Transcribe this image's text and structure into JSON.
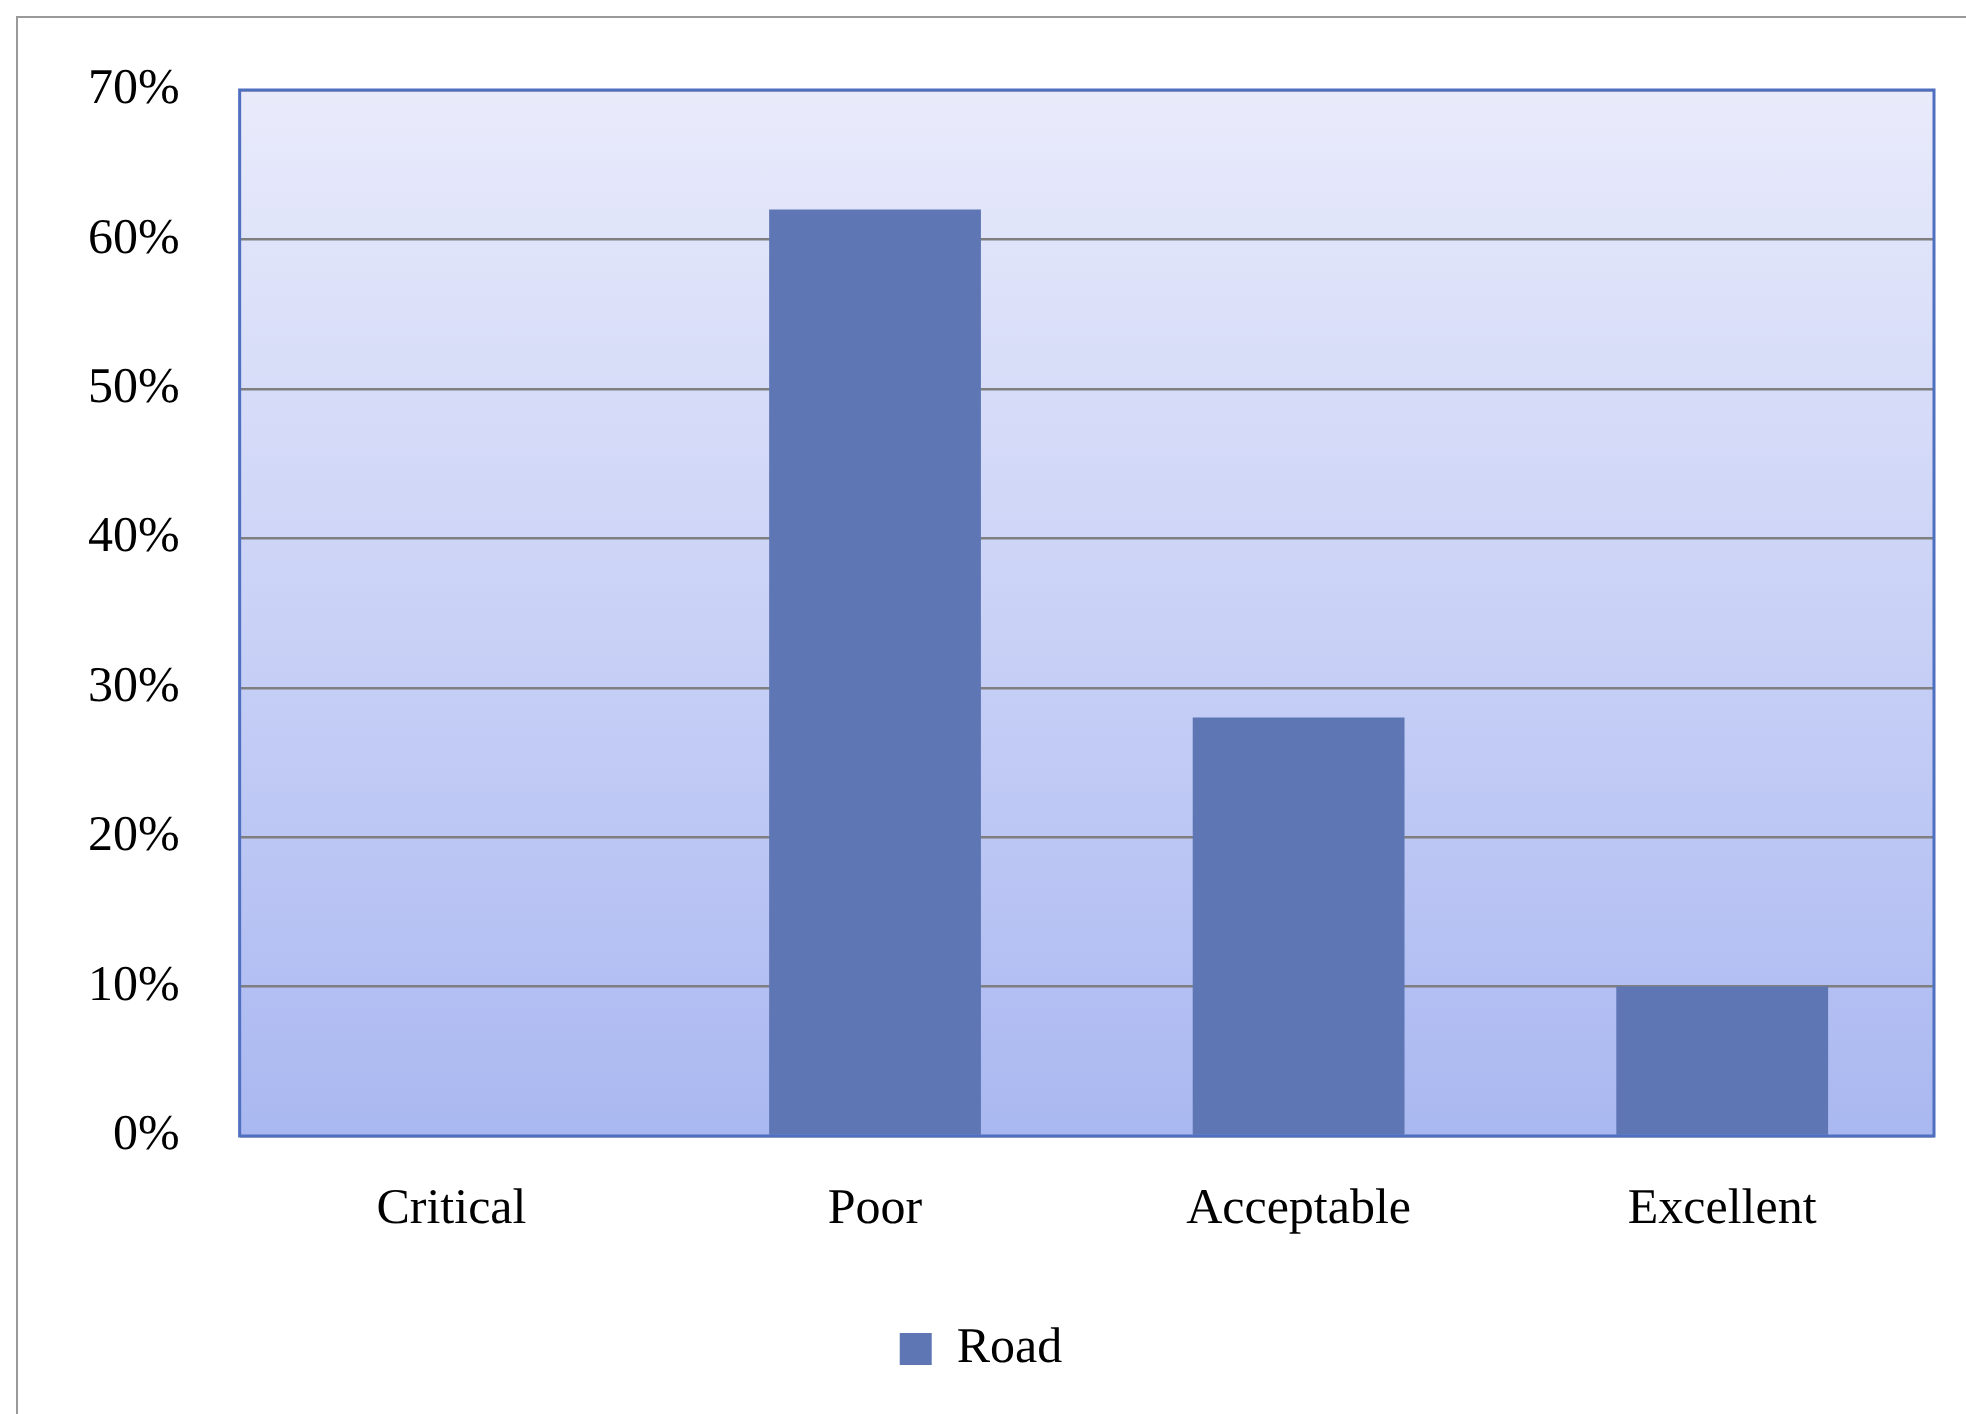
{
  "chart_data": {
    "type": "bar",
    "categories": [
      "Critical",
      "Poor",
      "Acceptable",
      "Excellent"
    ],
    "series": [
      {
        "name": "Road",
        "color": "#5e76b4",
        "values": [
          0,
          62,
          28,
          10
        ]
      }
    ],
    "ylim": [
      0,
      70
    ],
    "yticks": [
      {
        "value": 0,
        "label": "0%"
      },
      {
        "value": 10,
        "label": "10%"
      },
      {
        "value": 20,
        "label": "20%"
      },
      {
        "value": 30,
        "label": "30%"
      },
      {
        "value": 40,
        "label": "40%"
      },
      {
        "value": 50,
        "label": "50%"
      },
      {
        "value": 60,
        "label": "60%"
      },
      {
        "value": 70,
        "label": "70%"
      }
    ],
    "grid": "y",
    "legend": "bottom"
  }
}
